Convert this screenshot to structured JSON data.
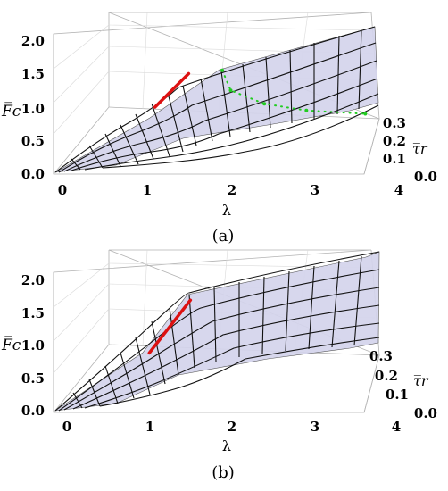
{
  "chart_data": [
    {
      "type": "surface3d",
      "panel": "a",
      "caption": "(a)",
      "xlabel": "λ",
      "ylabel": "F̅c",
      "zlabel": "τ̅r",
      "x_ticks": [
        "0",
        "1",
        "2",
        "3",
        "4"
      ],
      "y_ticks": [
        "0.0",
        "0.5",
        "1.0",
        "1.5",
        "2.0"
      ],
      "z_ticks": [
        "0.0",
        "0.1",
        "0.2",
        "0.3"
      ],
      "xlim": [
        0,
        4
      ],
      "ylim": [
        0,
        2
      ],
      "zlim": [
        0,
        0.3
      ],
      "surface_color": "#d4d4ec",
      "mesh_color": "#111111",
      "surface_points": [
        {
          "lambda": 0,
          "tau": 0,
          "F": 0.0
        },
        {
          "lambda": 1,
          "tau": 0,
          "F": 0.8
        },
        {
          "lambda": 1.4,
          "tau": 0.3,
          "F": 1.5
        },
        {
          "lambda": 4,
          "tau": 0,
          "F": 1.4
        },
        {
          "lambda": 4,
          "tau": 0.3,
          "F": 1.9
        }
      ],
      "curves": [
        {
          "color": "#dd1111",
          "style": "solid",
          "points": [
            {
              "x": 1.1,
              "y": 1.0
            },
            {
              "x": 1.5,
              "y": 1.5
            }
          ]
        },
        {
          "color": "#22cc22",
          "style": "dotted",
          "points": [
            {
              "x": 1.9,
              "y": 1.55
            },
            {
              "x": 2.0,
              "y": 1.25
            },
            {
              "x": 2.4,
              "y": 1.05
            },
            {
              "x": 2.9,
              "y": 0.95
            },
            {
              "x": 3.6,
              "y": 0.9
            }
          ]
        }
      ]
    },
    {
      "type": "surface3d",
      "panel": "b",
      "caption": "(b)",
      "xlabel": "λ",
      "ylabel": "F̅c",
      "zlabel": "τ̅r",
      "x_ticks": [
        "0",
        "1",
        "2",
        "3",
        "4"
      ],
      "y_ticks": [
        "0.0",
        "0.5",
        "1.0",
        "1.5",
        "2.0"
      ],
      "z_ticks": [
        "0.0",
        "0.1",
        "0.2",
        "0.3"
      ],
      "xlim": [
        0,
        4
      ],
      "ylim": [
        0,
        2
      ],
      "zlim": [
        0,
        0.3
      ],
      "surface_color": "#d4d4ec",
      "mesh_color": "#111111",
      "surface_points": [
        {
          "lambda": 0,
          "tau": 0,
          "F": 0.0
        },
        {
          "lambda": 1,
          "tau": 0,
          "F": 1.0
        },
        {
          "lambda": 1.5,
          "tau": 0.3,
          "F": 1.7
        },
        {
          "lambda": 4,
          "tau": 0,
          "F": 1.5
        },
        {
          "lambda": 4,
          "tau": 0.3,
          "F": 2.2
        }
      ],
      "curves": [
        {
          "color": "#dd1111",
          "style": "solid",
          "points": [
            {
              "x": 1.0,
              "y": 0.9
            },
            {
              "x": 1.5,
              "y": 1.7
            }
          ]
        }
      ]
    }
  ]
}
